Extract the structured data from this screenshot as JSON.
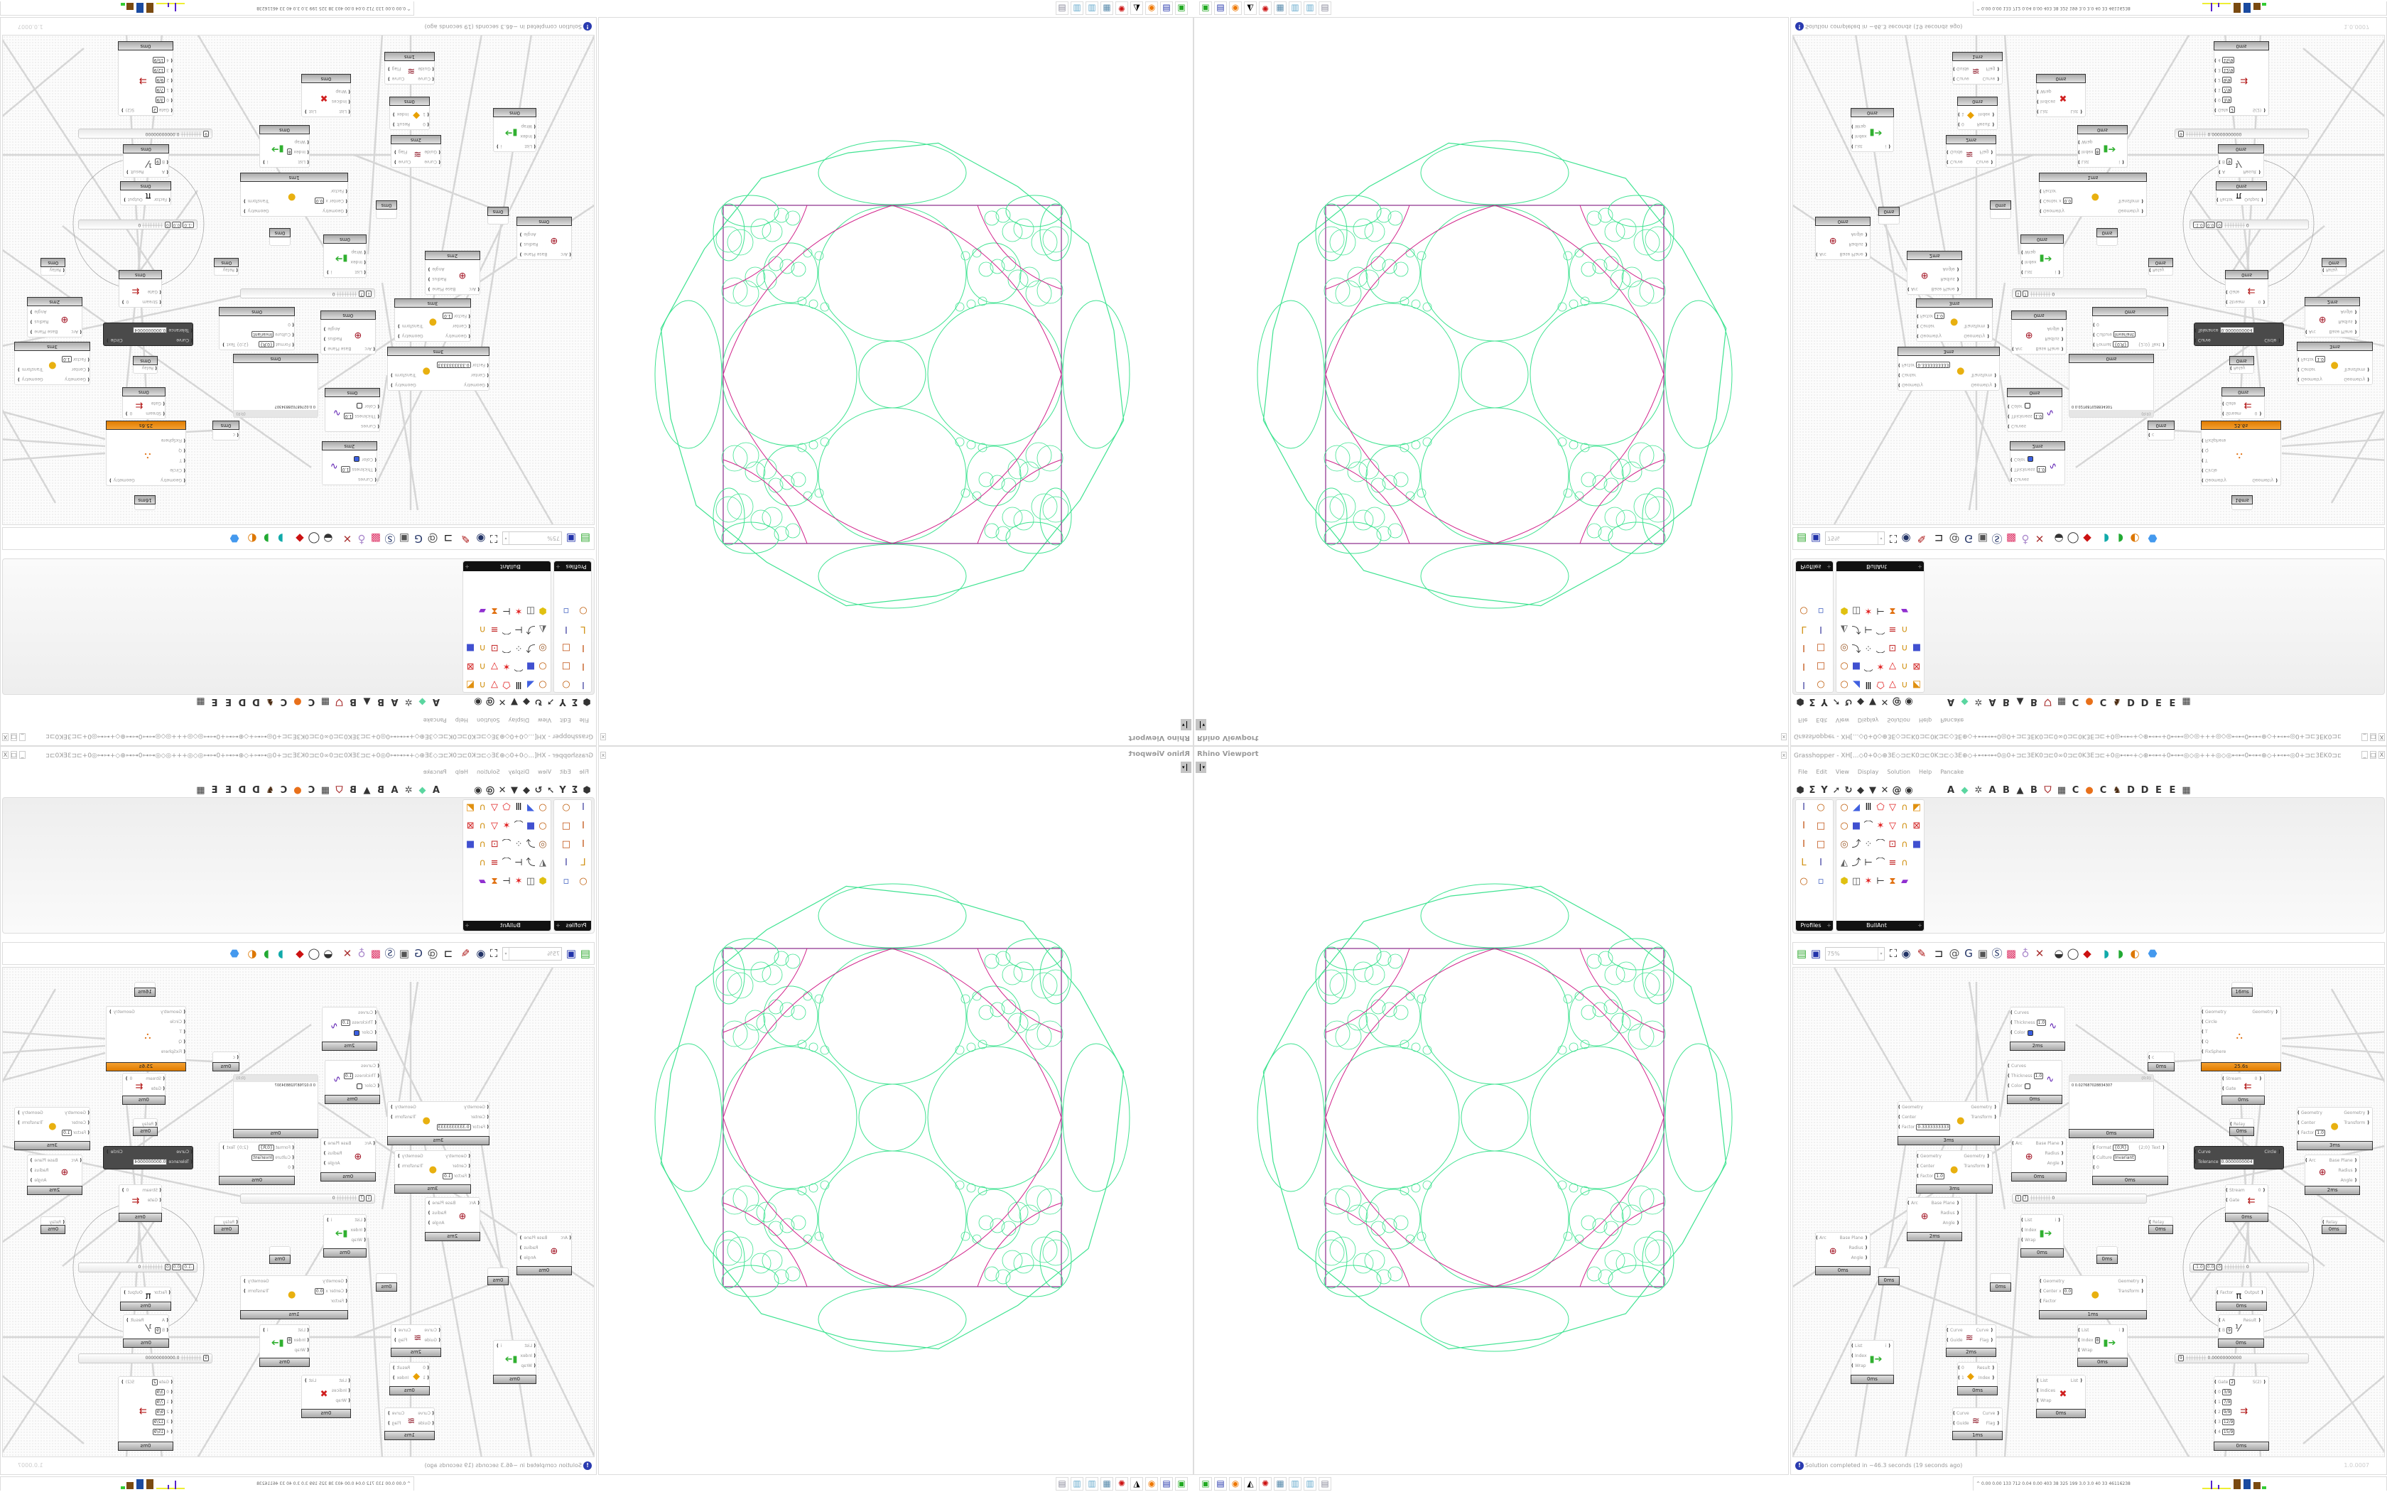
{
  "viewport": {
    "title": "Rhino Viewport",
    "close": "x",
    "dropdown": "▾"
  },
  "grasshopper": {
    "title": "Grasshopper - XH[...◇0+0◇⊕3E◇⊐⊏K0⊐⊏0K⊐⊏◇3E⊕◇+⊷⊷⊷0◎0+⊐⊏3EK0⊐⊏0∞0⊐⊏0K3E⊐⊏+0◎⊷⊷+◇⊕⊷⊷+0⊷⊷◎◇◎+++◎◇◎⊷⊷0⊷⊷⊕◇+⊷⊷◎0+⊐⊏3EK0⊐⊏0∞0...",
    "window_buttons": [
      "_",
      "□",
      "X"
    ],
    "menu": [
      "File",
      "Edit",
      "View",
      "Display",
      "Solution",
      "Help",
      "Pancake"
    ],
    "tab_icons": [
      "params-hexagon-icon",
      "maths-sigma-icon",
      "vector-icon",
      "curve-arrow-icon",
      "hook-icon",
      "surface-icon",
      "mesh-funnel-icon",
      "intersect-icon",
      "transform-spiral-icon",
      "display-eye-icon"
    ],
    "tab_letters": [
      "A",
      "leaf",
      "gear",
      "A",
      "B",
      "mountain",
      "B",
      "shield",
      "grid",
      "C",
      "circle",
      "C",
      "bird",
      "D",
      "D",
      "E",
      "E",
      "grid"
    ],
    "palettes": [
      {
        "label": "Profiles",
        "icons": [
          "i-profile",
          "ring",
          "i-beam",
          "box-profile",
          "i-beam",
          "box-profile",
          "angle-profile",
          "i-profile",
          "ring",
          "small-squares"
        ]
      },
      {
        "label": "BullAnt",
        "icons": [
          "ring",
          "plane-cut",
          "columns",
          "polygon-red",
          "triangle-red",
          "lock-beam",
          "surface-points",
          "ring",
          "cube-blue",
          "polyline",
          "polygon-cross",
          "triangle-red",
          "lock-beam",
          "frame-red",
          "hex-ball",
          "curve-point",
          "scatter",
          "polyline",
          "frame-points",
          "lock-beam",
          "cube-blue",
          "box-cone",
          "curve-point",
          "chain-bracket",
          "polyline",
          "frame-equal",
          "lock-beam",
          "",
          "hexagon-yellow",
          "frame-3d",
          "polygon-cross",
          "chain-bracket",
          "bend-red",
          "rainbow-surface",
          ""
        ]
      }
    ],
    "toolbar": {
      "zoom": "75%",
      "icons": [
        "open-file-icon",
        "save-icon",
        "zoom-extents-icon",
        "preview-eye-icon",
        "sketch-pen-icon",
        "bracket-icon",
        "email-icon",
        "gha-swap-icon",
        "window-icon",
        "search-s-icon",
        "mystery-box-icon",
        "lightbulb-icon",
        "wire-display-icon",
        "preview-shaded-icon",
        "preview-wire-icon",
        "preview-selected-icon",
        "bake-teal-icon",
        "bake-green-icon",
        "sphere-half-icon",
        "blue-sphere-icon"
      ]
    },
    "canvas": {
      "nodes": [
        {
          "kind": "c",
          "icon": "preview",
          "inputs": [
            {
              "n": "Curves"
            },
            {
              "n": "Thickness",
              "v": "1.0"
            },
            {
              "n": "Color",
              "swatch": "#3a5ee0"
            }
          ],
          "outputs": [],
          "time": "2ms"
        },
        {
          "kind": "c",
          "icon": "preview",
          "inputs": [
            {
              "n": "Curves"
            },
            {
              "n": "Thickness",
              "v": "1.0"
            },
            {
              "n": "Color",
              "swatch": "#ffffff"
            }
          ],
          "outputs": [],
          "time": "0ms"
        },
        {
          "kind": "c",
          "icon": "scale",
          "inputs": [
            {
              "n": "Geometry"
            },
            {
              "n": "Center"
            },
            {
              "n": "Factor",
              "v": "0.3333333333"
            }
          ],
          "outputs": [
            "Geometry",
            "Transform"
          ],
          "time": "3ms"
        },
        {
          "kind": "c",
          "icon": "scale",
          "inputs": [
            {
              "n": "Geometry"
            },
            {
              "n": "Center"
            },
            {
              "n": "Factor",
              "v": "1.0"
            }
          ],
          "outputs": [
            "Geometry",
            "Transform"
          ],
          "time": "3ms"
        },
        {
          "kind": "c",
          "icon": "arc",
          "inputs": [
            {
              "n": "Arc"
            }
          ],
          "outputs": [
            "Base Plane",
            "Radius",
            "Angle"
          ],
          "time": "0ms"
        },
        {
          "kind": "panel",
          "header": "{0;0}",
          "text": "0 0.027687028834307",
          "time": "0ms"
        },
        {
          "kind": "c",
          "orange": true,
          "icon": "apollonian",
          "inputs": [
            {
              "n": "Geometry"
            },
            {
              "n": "Circle"
            },
            {
              "n": "T"
            },
            {
              "n": "Q"
            },
            {
              "n": "FixSphere"
            }
          ],
          "outputs": [
            "Geometry"
          ],
          "time": "25.6s"
        },
        {
          "kind": "c",
          "inputs": [
            {
              "n": "c"
            }
          ],
          "outputs": [],
          "time": "0ms"
        },
        {
          "kind": "c",
          "icon": "stream-gate",
          "inputs": [
            {
              "n": "Stream"
            },
            {
              "n": "Gate"
            }
          ],
          "outputs": [
            "0"
          ],
          "time": "0ms"
        },
        {
          "kind": "c",
          "inputs": [
            {
              "n": "Relay"
            }
          ],
          "outputs": [],
          "time": "0ms"
        },
        {
          "kind": "dark",
          "inputs": [
            {
              "n": "Curve"
            },
            {
              "n": "Tolerance",
              "v": "0.0000000004"
            }
          ],
          "outputs": [
            "Circle"
          ]
        },
        {
          "kind": "c",
          "icon": "scale",
          "inputs": [
            {
              "n": "Geometry"
            },
            {
              "n": "Center"
            },
            {
              "n": "Factor",
              "v": "1.0"
            }
          ],
          "outputs": [
            "Geometry",
            "Transform"
          ],
          "time": "3ms"
        },
        {
          "kind": "c",
          "icon": "arc",
          "inputs": [
            {
              "n": "Arc"
            }
          ],
          "outputs": [
            "Base Plane",
            "Radius",
            "Angle"
          ],
          "time": "2ms"
        },
        {
          "kind": "c",
          "inputs": [
            {
              "n": "Format",
              "v": "{0;R}"
            },
            {
              "n": "Culture",
              "v": "Invariant"
            },
            {
              "n": "0"
            }
          ],
          "outputs": [
            "{2;0} Text"
          ],
          "time": "0ms"
        },
        {
          "kind": "c",
          "inputs": [],
          "outputs": [],
          "time": "16ms"
        },
        {
          "kind": "c",
          "icon": "arc",
          "inputs": [
            {
              "n": "Arc"
            }
          ],
          "outputs": [
            "Base Plane",
            "Radius",
            "Angle"
          ],
          "time": "0ms"
        },
        {
          "kind": "c",
          "icon": "arc",
          "inputs": [
            {
              "n": "Arc"
            }
          ],
          "outputs": [
            "Base Plane",
            "Radius",
            "Angle"
          ],
          "time": "2ms"
        },
        {
          "kind": "c",
          "inputs": [],
          "outputs": [],
          "time": "0ms"
        },
        {
          "kind": "c",
          "inputs": [],
          "outputs": [],
          "time": "0ms"
        },
        {
          "kind": "c",
          "icon": "list-item",
          "inputs": [
            {
              "n": "List"
            },
            {
              "n": "Index"
            },
            {
              "n": "Wrap"
            }
          ],
          "outputs": [
            "i"
          ],
          "time": "0ms"
        },
        {
          "kind": "c",
          "icon": "scale",
          "inputs": [
            {
              "n": "Geometry"
            },
            {
              "n": "Center x",
              "v": "0.0"
            },
            {
              "n": "Factor"
            }
          ],
          "outputs": [
            "Geometry",
            "Transform"
          ],
          "time": "1ms"
        },
        {
          "kind": "c",
          "icon": "curve-guide",
          "inputs": [
            {
              "n": "Curve"
            },
            {
              "n": "Guide"
            }
          ],
          "outputs": [
            "Curve",
            "Flag"
          ],
          "time": "2ms"
        },
        {
          "kind": "c",
          "icon": "list-item",
          "inputs": [
            {
              "n": "List"
            },
            {
              "n": "Index"
            },
            {
              "n": "Wrap"
            }
          ],
          "outputs": [
            "i"
          ],
          "time": "0ms"
        },
        {
          "kind": "c",
          "icon": "gate",
          "inputs": [
            {
              "n": "0"
            },
            {
              "n": "1"
            }
          ],
          "outputs": [
            "Result",
            "Index"
          ],
          "time": "0ms"
        },
        {
          "kind": "c",
          "icon": "curve-guide",
          "inputs": [
            {
              "n": "Curve"
            },
            {
              "n": "Guide"
            }
          ],
          "outputs": [
            "Curve",
            "Flag"
          ],
          "time": "1ms"
        },
        {
          "kind": "c",
          "icon": "cull",
          "inputs": [
            {
              "n": "List"
            },
            {
              "n": "Indices"
            },
            {
              "n": "Wrap"
            }
          ],
          "outputs": [
            "List"
          ],
          "time": "0ms"
        },
        {
          "kind": "c",
          "icon": "list-item",
          "inputs": [
            {
              "n": "List"
            },
            {
              "n": "Index",
              "v": "8"
            },
            {
              "n": "Wrap"
            }
          ],
          "outputs": [
            "i"
          ],
          "time": "0ms"
        },
        {
          "kind": "c",
          "icon": "stream-gate",
          "inputs": [
            {
              "n": "Stream"
            },
            {
              "n": "Gate"
            }
          ],
          "outputs": [
            "0"
          ],
          "time": "0ms"
        },
        {
          "kind": "c",
          "inputs": [
            {
              "n": "Relay"
            }
          ],
          "outputs": [],
          "time": "0ms"
        },
        {
          "kind": "c",
          "inputs": [
            {
              "n": "Relay"
            }
          ],
          "outputs": [],
          "time": "0ms"
        },
        {
          "kind": "c",
          "inputs": [],
          "outputs": [],
          "time": "0ms"
        },
        {
          "kind": "slider",
          "values": [
            "-1.0",
            "0.0",
            "0"
          ],
          "end": "0"
        },
        {
          "kind": "c",
          "icon": "pi",
          "inputs": [
            {
              "n": "Factor"
            }
          ],
          "outputs": [
            "Output"
          ],
          "time": "0ms"
        },
        {
          "kind": "c",
          "icon": "division",
          "inputs": [
            {
              "n": "A"
            },
            {
              "n": "B",
              "v": "9"
            }
          ],
          "outputs": [
            "Result"
          ],
          "time": "0ms"
        },
        {
          "kind": "slider",
          "values": [
            "9"
          ],
          "end": "0.00000000000"
        },
        {
          "kind": "c",
          "icon": "stream-filter",
          "inputs": [
            {
              "n": "Gate",
              "v": "2"
            },
            {
              "n": "0",
              "v": "3/9"
            },
            {
              "n": "1",
              "v": "7/9"
            },
            {
              "n": "2",
              "v": "9/9"
            },
            {
              "n": "3",
              "v": "12/9"
            },
            {
              "n": "4",
              "v": "15/9"
            }
          ],
          "outputs": [
            "S(2)"
          ],
          "time": "0ms"
        },
        {
          "kind": "slider",
          "values": [
            "1",
            "7"
          ],
          "end": "0"
        }
      ]
    },
    "status": {
      "icon": "info-icon",
      "text": "Solution completed in ~46.3 seconds (19 seconds ago)",
      "version": "1.0.0007"
    }
  },
  "taskbar": {
    "icons": [
      "terminal-icon",
      "floppy-64-icon",
      "firefox-icon",
      "inkscape-icon",
      "red-app-icon",
      "calculator-icon",
      "notepad-icon",
      "notepad-icon",
      "document-icon"
    ],
    "perf": "0.00 0.00 133 712 0.04 0.00 403 38 325 199 3.0 3.0 40 33 46116238"
  },
  "colors": {
    "apollonian_green": "#3fe391",
    "apollonian_magenta": "#d0228a",
    "square": "#8a2a8a",
    "solver_orange": "#e8820c",
    "status_blue": "#2a3bb0"
  }
}
